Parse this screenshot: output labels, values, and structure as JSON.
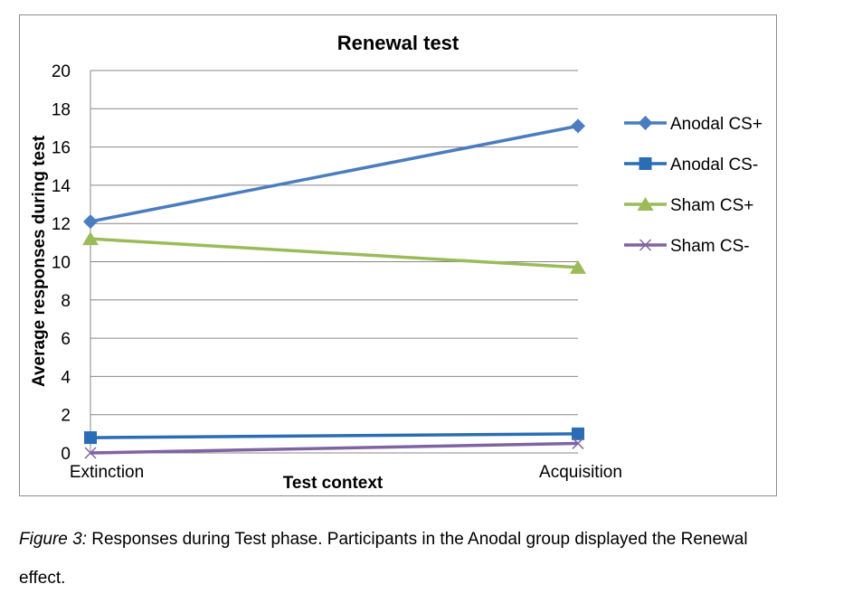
{
  "chart_data": {
    "type": "line",
    "title": "Renewal test",
    "xlabel": "Test context",
    "ylabel": "Average responses during test",
    "categories": [
      "Extinction",
      "Acquisition"
    ],
    "ylim": [
      0,
      20
    ],
    "yticks": [
      0,
      2,
      4,
      6,
      8,
      10,
      12,
      14,
      16,
      18,
      20
    ],
    "grid": true,
    "legend_position": "right",
    "series": [
      {
        "name": "Anodal CS+",
        "values": [
          12.1,
          17.1
        ],
        "color": "#4a7cc0",
        "marker": "diamond"
      },
      {
        "name": "Anodal CS-",
        "values": [
          0.8,
          1.0
        ],
        "color": "#2a6db5",
        "marker": "square"
      },
      {
        "name": "Sham CS+",
        "values": [
          11.2,
          9.7
        ],
        "color": "#9bbb59",
        "marker": "triangle"
      },
      {
        "name": "Sham CS-",
        "values": [
          0.0,
          0.5
        ],
        "color": "#8064a2",
        "marker": "x"
      }
    ]
  },
  "caption": {
    "lead": "Figure 3:",
    "line1": " Responses during Test phase. Participants in the Anodal group displayed the Renewal",
    "line2": "effect."
  }
}
